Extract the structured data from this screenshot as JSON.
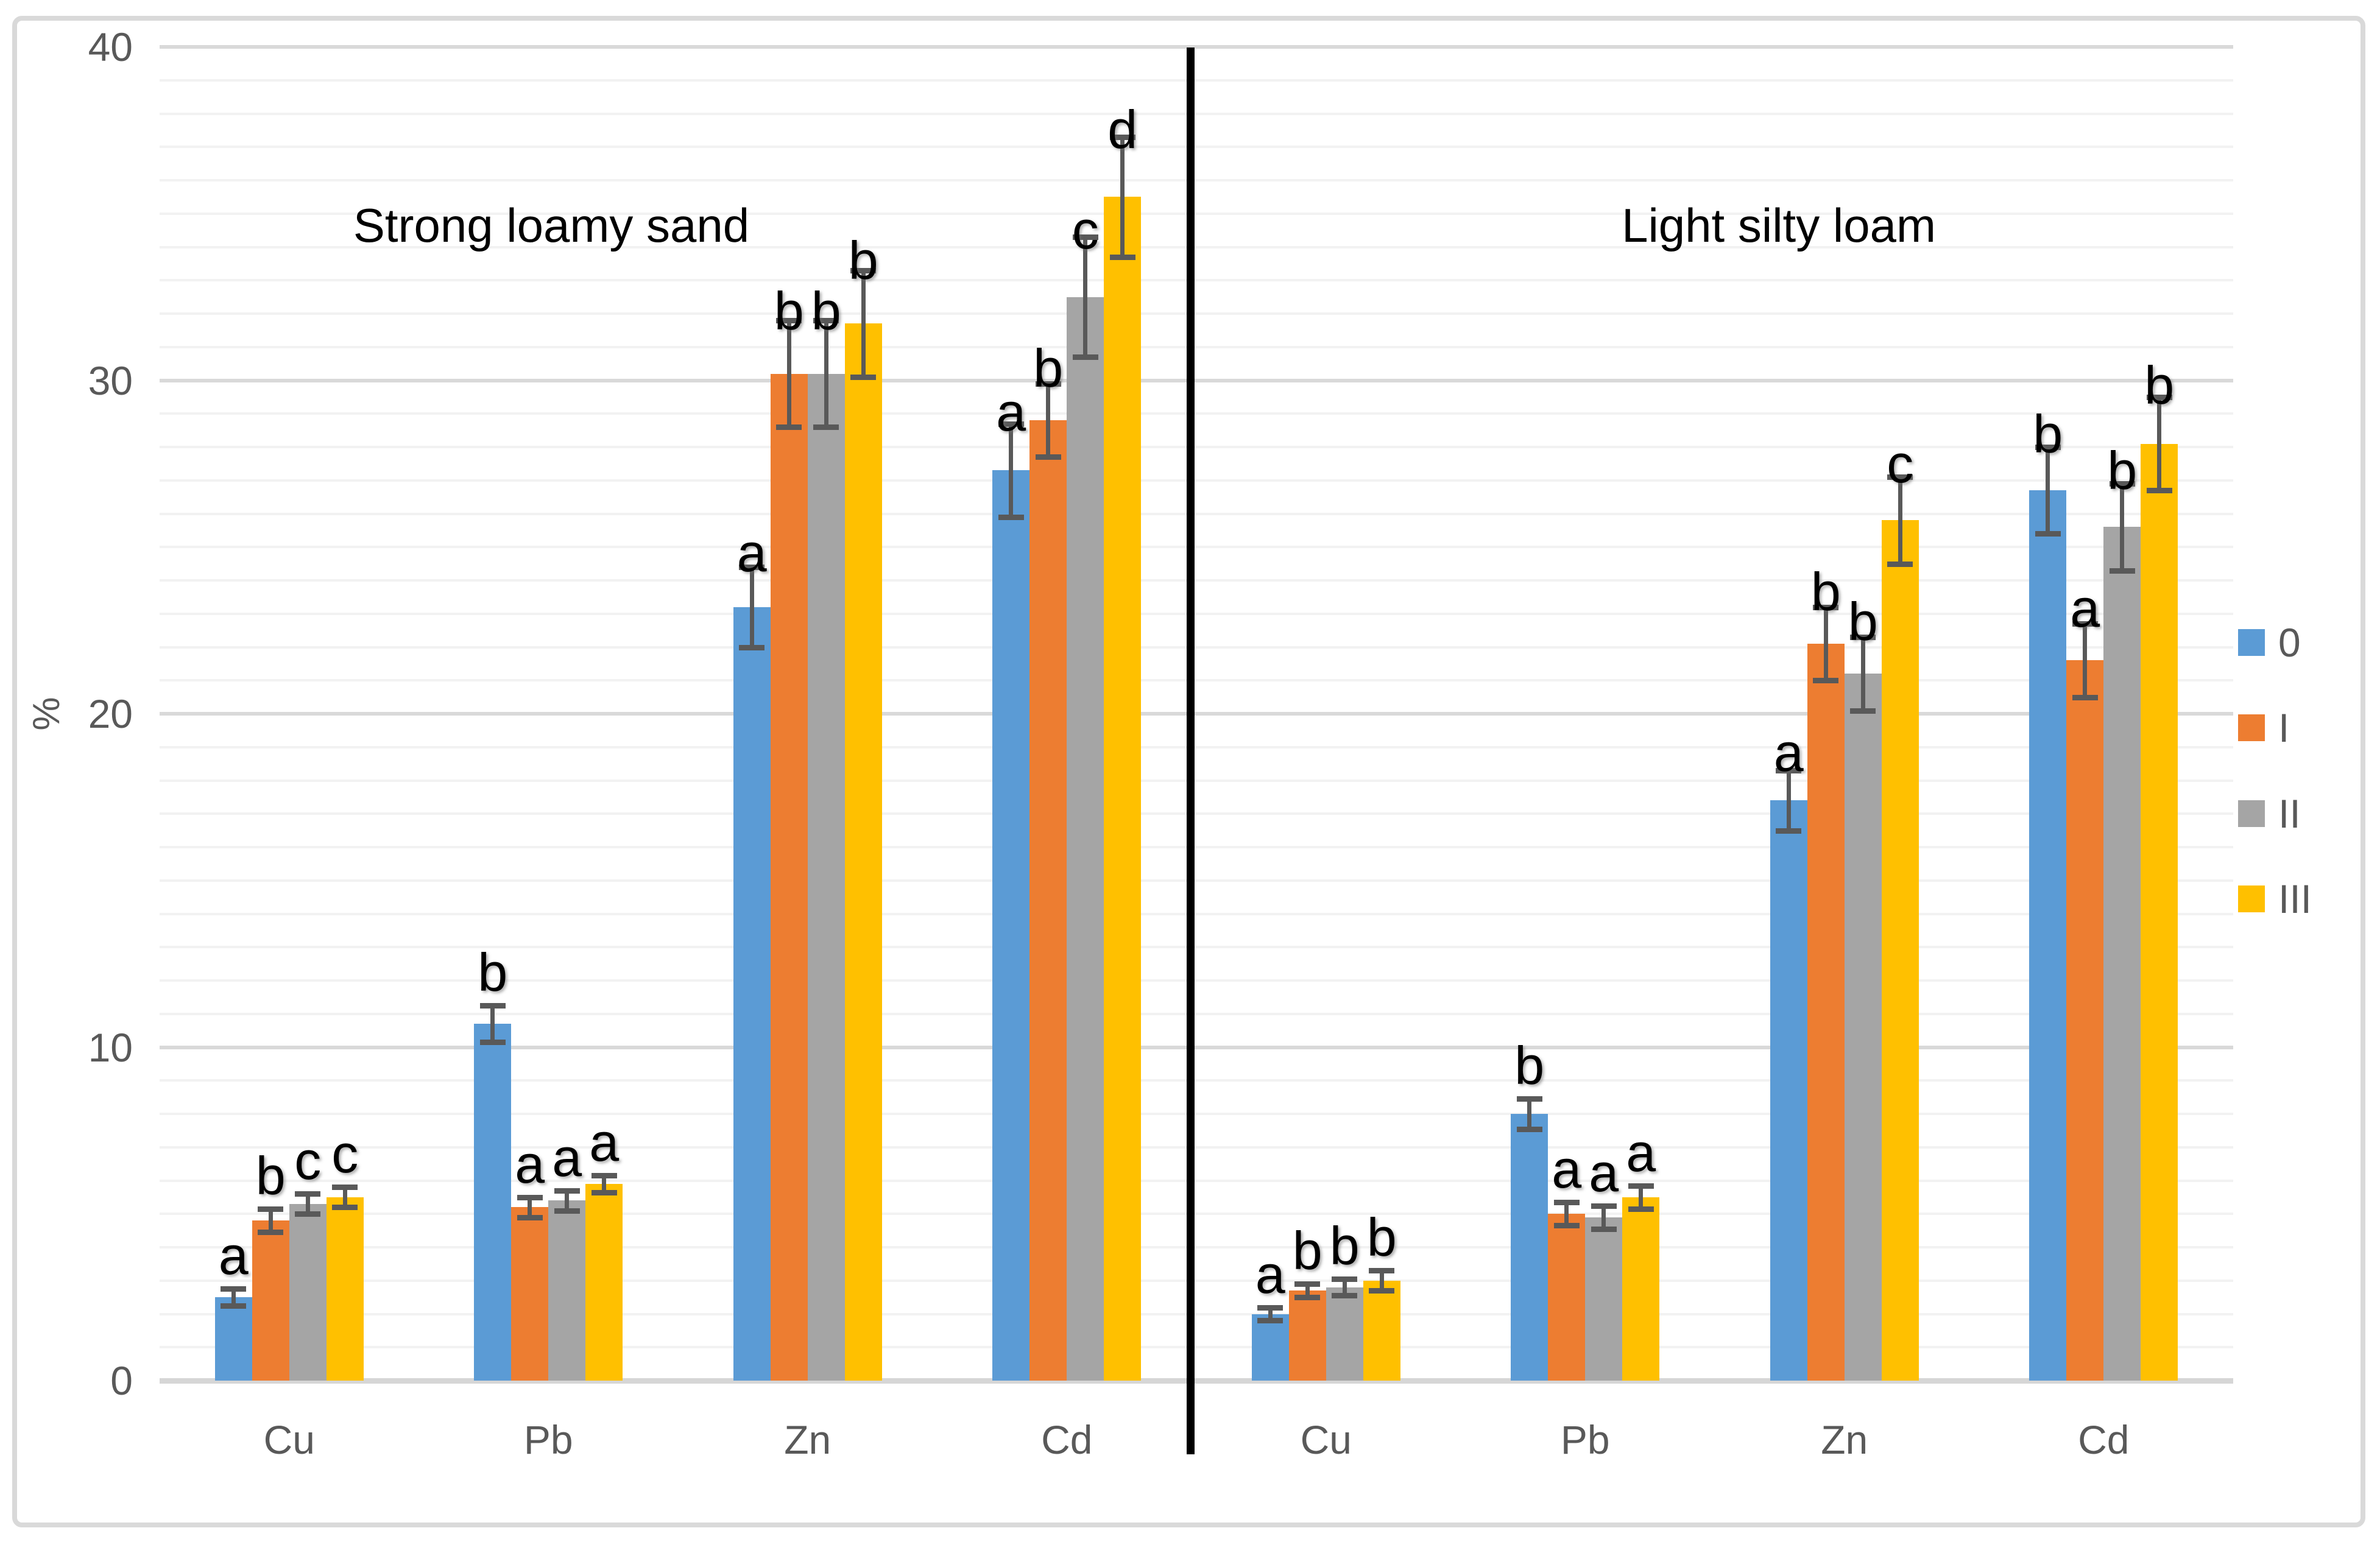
{
  "chart_data": {
    "type": "bar",
    "title": "",
    "ylabel": "%",
    "xlabel": "",
    "ylim": [
      0,
      40
    ],
    "yticks": [
      0,
      10,
      20,
      30,
      40
    ],
    "ytick_labels": [
      "0",
      "10",
      "20",
      "30",
      "40"
    ],
    "minor_grid_step": 1,
    "grid": true,
    "legend_position": "right",
    "series_names": [
      "0",
      "I",
      "II",
      "III"
    ],
    "series_colors": [
      "#5B9BD5",
      "#ED7D31",
      "#A5A5A5",
      "#FFC000"
    ],
    "error_bar_color": "#595959",
    "panel_divider": true,
    "panels": [
      {
        "title": "Strong loamy sand",
        "categories": [
          "Cu",
          "Pb",
          "Zn",
          "Cd"
        ],
        "series": [
          {
            "name": "0",
            "values": [
              2.5,
              10.7,
              23.2,
              27.3
            ],
            "errors": [
              0.25,
              0.55,
              1.2,
              1.4
            ],
            "letters": [
              "a",
              "b",
              "a",
              "a"
            ]
          },
          {
            "name": "I",
            "values": [
              4.8,
              5.2,
              30.2,
              28.8
            ],
            "errors": [
              0.35,
              0.3,
              1.6,
              1.1
            ],
            "letters": [
              "b",
              "a",
              "b",
              "b"
            ]
          },
          {
            "name": "II",
            "values": [
              5.3,
              5.4,
              30.2,
              32.5
            ],
            "errors": [
              0.3,
              0.3,
              1.6,
              1.8
            ],
            "letters": [
              "c",
              "a",
              "b",
              "c"
            ]
          },
          {
            "name": "III",
            "values": [
              5.5,
              5.9,
              31.7,
              35.5
            ],
            "errors": [
              0.3,
              0.25,
              1.6,
              1.8
            ],
            "letters": [
              "c",
              "a",
              "b",
              "d"
            ]
          }
        ]
      },
      {
        "title": "Light silty loam",
        "categories": [
          "Cu",
          "Pb",
          "Zn",
          "Cd"
        ],
        "series": [
          {
            "name": "0",
            "values": [
              2.0,
              8.0,
              17.4,
              26.7
            ],
            "errors": [
              0.2,
              0.45,
              0.9,
              1.3
            ],
            "letters": [
              "a",
              "b",
              "a",
              "b"
            ]
          },
          {
            "name": "I",
            "values": [
              2.7,
              5.0,
              22.1,
              21.6
            ],
            "errors": [
              0.2,
              0.35,
              1.1,
              1.1
            ],
            "letters": [
              "b",
              "a",
              "b",
              "a"
            ]
          },
          {
            "name": "II",
            "values": [
              2.8,
              4.9,
              21.2,
              25.6
            ],
            "errors": [
              0.25,
              0.35,
              1.1,
              1.3
            ],
            "letters": [
              "b",
              "a",
              "b",
              "b"
            ]
          },
          {
            "name": "III",
            "values": [
              3.0,
              5.5,
              25.8,
              28.1
            ],
            "errors": [
              0.3,
              0.35,
              1.3,
              1.4
            ],
            "letters": [
              "b",
              "a",
              "c",
              "b"
            ]
          }
        ]
      }
    ]
  }
}
